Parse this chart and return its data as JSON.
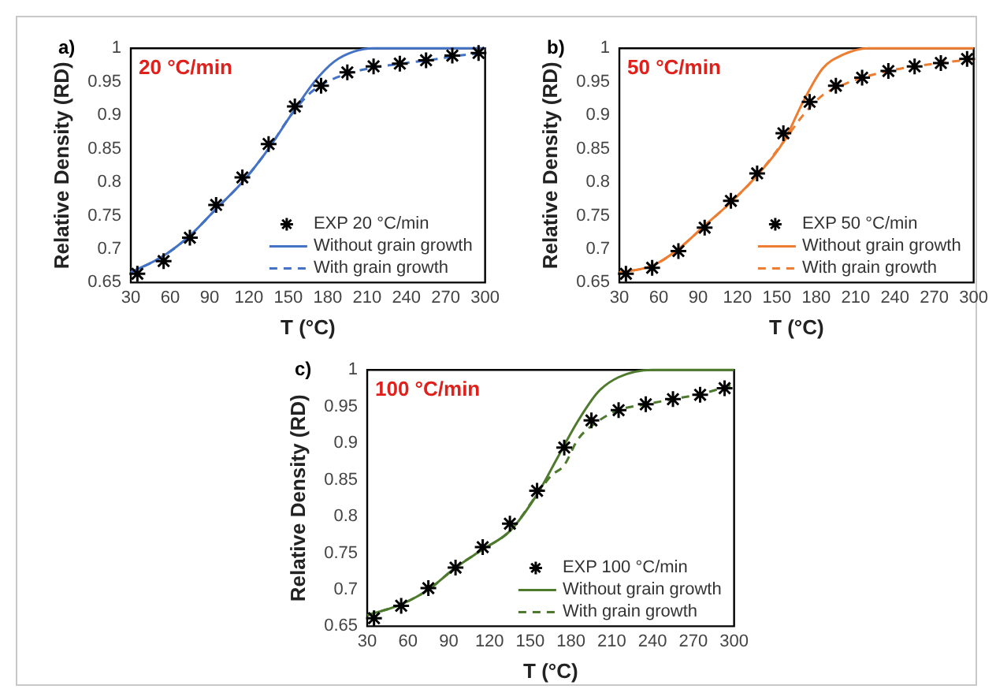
{
  "chart_data": [
    {
      "type": "line",
      "annotations": [
        "a)",
        "20 °C/min"
      ],
      "xlabel": "T (°C)",
      "ylabel": "Relative Density (RD)",
      "xlim": [
        30,
        300
      ],
      "xticks": [
        30,
        60,
        90,
        120,
        150,
        180,
        210,
        240,
        270,
        300
      ],
      "ylim": [
        0.65,
        1
      ],
      "yticks": [
        0.65,
        0.7,
        0.75,
        0.8,
        0.85,
        0.9,
        0.95,
        1
      ],
      "grid": false,
      "legend": "bottom right",
      "series": [
        {
          "name": "EXP 20 °C/min",
          "type": "scatter",
          "marker": "cross",
          "color": "#000000",
          "x": [
            35,
            55,
            75,
            95,
            115,
            135,
            155,
            175,
            195,
            215,
            235,
            255,
            275,
            295
          ],
          "values": [
            0.663,
            0.682,
            0.717,
            0.766,
            0.807,
            0.857,
            0.913,
            0.944,
            0.964,
            0.973,
            0.977,
            0.982,
            0.989,
            0.993
          ]
        },
        {
          "name": "Without grain growth",
          "type": "line",
          "line_style": "solid",
          "color": "#4472c4",
          "x": [
            30,
            55,
            75,
            95,
            115,
            135,
            152,
            170,
            185,
            200,
            215,
            240,
            270,
            300
          ],
          "values": [
            0.665,
            0.69,
            0.72,
            0.76,
            0.8,
            0.85,
            0.9,
            0.95,
            0.98,
            0.995,
            1,
            1,
            1,
            1
          ]
        },
        {
          "name": "With grain growth",
          "type": "line",
          "line_style": "dashed",
          "color": "#4472c4",
          "x": [
            30,
            55,
            75,
            95,
            115,
            135,
            152,
            165,
            175,
            195,
            215,
            240,
            260,
            280,
            300
          ],
          "values": [
            0.665,
            0.69,
            0.72,
            0.76,
            0.8,
            0.85,
            0.9,
            0.93,
            0.945,
            0.962,
            0.971,
            0.978,
            0.983,
            0.989,
            0.993
          ]
        }
      ]
    },
    {
      "type": "line",
      "annotations": [
        "b)",
        "50 °C/min"
      ],
      "xlabel": "T (°C)",
      "ylabel": "Relative Density (RD)",
      "xlim": [
        30,
        300
      ],
      "xticks": [
        30,
        60,
        90,
        120,
        150,
        180,
        210,
        240,
        270,
        300
      ],
      "ylim": [
        0.65,
        1
      ],
      "yticks": [
        0.65,
        0.7,
        0.75,
        0.8,
        0.85,
        0.9,
        0.95,
        1
      ],
      "grid": false,
      "legend": "bottom right",
      "series": [
        {
          "name": "EXP 50 °C/min",
          "type": "scatter",
          "marker": "cross",
          "color": "#000000",
          "x": [
            35,
            55,
            75,
            95,
            115,
            135,
            155,
            175,
            195,
            215,
            235,
            255,
            275,
            295
          ],
          "values": [
            0.663,
            0.672,
            0.697,
            0.732,
            0.772,
            0.813,
            0.873,
            0.92,
            0.944,
            0.956,
            0.966,
            0.973,
            0.978,
            0.984
          ]
        },
        {
          "name": "Without grain growth",
          "type": "line",
          "line_style": "solid",
          "color": "#ed7d31",
          "x": [
            30,
            55,
            75,
            95,
            115,
            135,
            155,
            170,
            185,
            200,
            220,
            250,
            300
          ],
          "values": [
            0.665,
            0.675,
            0.7,
            0.735,
            0.77,
            0.81,
            0.86,
            0.92,
            0.97,
            0.99,
            1,
            1,
            1
          ]
        },
        {
          "name": "With grain growth",
          "type": "line",
          "line_style": "dashed",
          "color": "#ed7d31",
          "x": [
            30,
            55,
            75,
            95,
            115,
            135,
            155,
            170,
            185,
            200,
            215,
            235,
            255,
            275,
            300
          ],
          "values": [
            0.665,
            0.675,
            0.7,
            0.735,
            0.77,
            0.81,
            0.86,
            0.9,
            0.93,
            0.945,
            0.956,
            0.966,
            0.973,
            0.978,
            0.984
          ]
        }
      ]
    },
    {
      "type": "line",
      "annotations": [
        "c)",
        "100 °C/min"
      ],
      "xlabel": "T (°C)",
      "ylabel": "Relative Density (RD)",
      "xlim": [
        30,
        300
      ],
      "xticks": [
        30,
        60,
        90,
        120,
        150,
        180,
        210,
        240,
        270,
        300
      ],
      "ylim": [
        0.65,
        1
      ],
      "yticks": [
        0.65,
        0.7,
        0.75,
        0.8,
        0.85,
        0.9,
        0.95,
        1
      ],
      "grid": false,
      "legend": "bottom right",
      "series": [
        {
          "name": "EXP 100 °C/min",
          "type": "scatter",
          "marker": "cross",
          "color": "#000000",
          "x": [
            35,
            55,
            75,
            95,
            115,
            135,
            155,
            175,
            195,
            215,
            235,
            255,
            275,
            293
          ],
          "values": [
            0.661,
            0.678,
            0.702,
            0.73,
            0.758,
            0.79,
            0.835,
            0.894,
            0.931,
            0.945,
            0.953,
            0.96,
            0.966,
            0.975
          ]
        },
        {
          "name": "Without grain growth",
          "type": "line",
          "line_style": "solid",
          "color": "#4e7a2e",
          "x": [
            30,
            55,
            75,
            95,
            115,
            135,
            155,
            170,
            185,
            200,
            215,
            240,
            270,
            300
          ],
          "values": [
            0.665,
            0.68,
            0.7,
            0.73,
            0.755,
            0.78,
            0.83,
            0.88,
            0.93,
            0.97,
            0.99,
            1,
            1,
            1
          ]
        },
        {
          "name": "With grain growth",
          "type": "line",
          "line_style": "dashed",
          "color": "#4e7a2e",
          "x": [
            30,
            55,
            75,
            95,
            115,
            135,
            155,
            165,
            175,
            185,
            200,
            215,
            235,
            255,
            275,
            300
          ],
          "values": [
            0.665,
            0.68,
            0.7,
            0.73,
            0.755,
            0.78,
            0.83,
            0.855,
            0.87,
            0.905,
            0.93,
            0.945,
            0.953,
            0.96,
            0.967,
            0.98
          ]
        }
      ]
    }
  ]
}
